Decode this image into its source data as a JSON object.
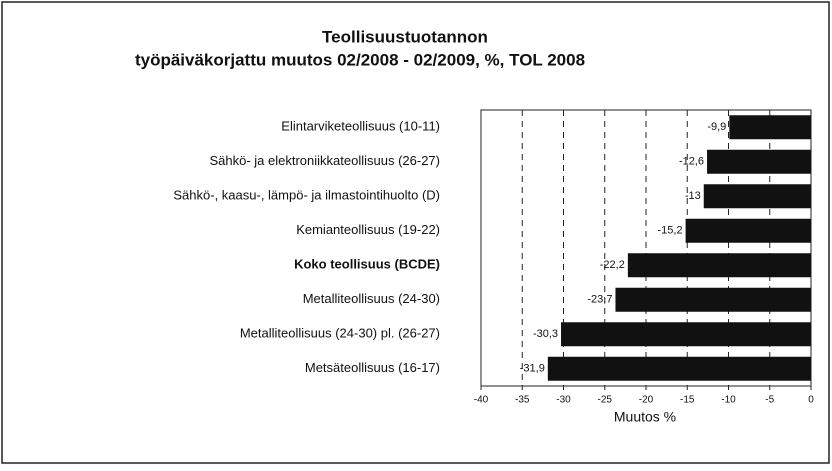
{
  "chart_data": {
    "type": "bar",
    "orientation": "horizontal",
    "title": "Teollisuustuotannon",
    "subtitle": "työpäiväkorjattu muutos 02/2008 - 02/2009,  %,  TOL 2008",
    "x_label": "Muutos %",
    "categories": [
      "Elintarviketeollisuus (10-11)",
      "Sähkö- ja elektroniikkateollisuus (26-27)",
      "Sähkö-, kaasu-, lämpö- ja ilmastointihuolto (D)",
      "Kemianteollisuus (19-22)",
      "Koko teollisuus (BCDE)",
      "Metalliteollisuus (24-30)",
      "Metalliteollisuus (24-30) pl. (26-27)",
      "Metsäteollisuus (16-17)"
    ],
    "values": [
      -9.9,
      -12.6,
      -13,
      -15.2,
      -22.2,
      -23.7,
      -30.3,
      -31.9
    ],
    "value_labels": [
      "-9,9",
      "-12,6",
      "-13",
      "-15,2",
      "-22,2",
      "-23,7",
      "-30,3",
      "-31,9"
    ],
    "color": "#111111",
    "xlim": [
      -40,
      0
    ],
    "xticks": [
      -40,
      -35,
      -30,
      -25,
      -20,
      -15,
      -10,
      -5,
      0
    ],
    "grid": true
  }
}
